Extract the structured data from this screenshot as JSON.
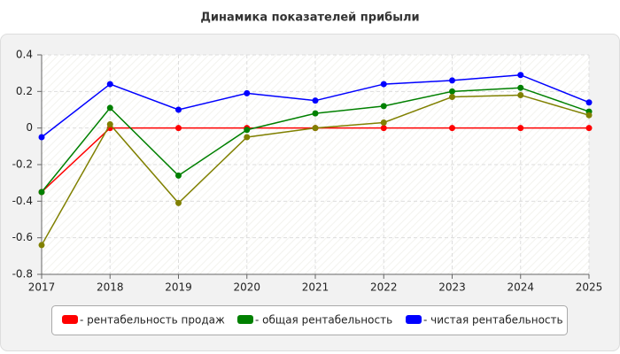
{
  "chart_data": {
    "type": "line",
    "title": "Динамика показателей прибыли",
    "categories": [
      "2017",
      "2018",
      "2019",
      "2020",
      "2021",
      "2022",
      "2023",
      "2024",
      "2025"
    ],
    "series": [
      {
        "name": "- рентабельность продаж",
        "color": "#ff0000",
        "values": [
          -0.35,
          0,
          0,
          0,
          0,
          0,
          0,
          0,
          0
        ]
      },
      {
        "name": "- общая рентабельность",
        "color": "#008000",
        "values": [
          -0.35,
          0.11,
          -0.26,
          -0.01,
          0.08,
          0.12,
          0.2,
          0.22,
          0.09
        ]
      },
      {
        "color": "#808000",
        "values": [
          -0.64,
          0.02,
          -0.41,
          -0.05,
          0,
          0.03,
          0.17,
          0.18,
          0.07
        ]
      },
      {
        "name": "- чистая рентабельность",
        "color": "#0000ff",
        "values": [
          -0.05,
          0.24,
          0.1,
          0.19,
          0.15,
          0.24,
          0.26,
          0.29,
          0.14
        ]
      }
    ],
    "ylim": [
      -0.8,
      0.4
    ],
    "yticks": [
      0.4,
      0.2,
      0,
      -0.2,
      -0.4,
      -0.6,
      -0.8
    ],
    "grid": true
  }
}
